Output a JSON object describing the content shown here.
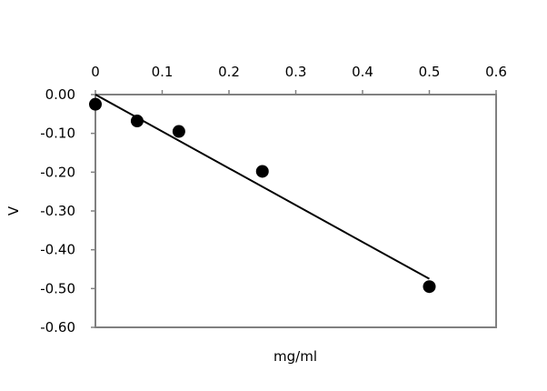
{
  "chart_data": {
    "type": "scatter",
    "title": "",
    "xlabel": "mg/ml",
    "ylabel": "V",
    "x_axis_position": "top",
    "xlim": [
      0,
      0.6
    ],
    "ylim": [
      -0.6,
      0.0
    ],
    "x_ticks": [
      0,
      0.1,
      0.2,
      0.3,
      0.4,
      0.5,
      0.6
    ],
    "x_tick_labels": [
      "0",
      "0.1",
      "0.2",
      "0.3",
      "0.4",
      "0.5",
      "0.6"
    ],
    "y_ticks": [
      0.0,
      -0.1,
      -0.2,
      -0.3,
      -0.4,
      -0.5,
      -0.6
    ],
    "y_tick_labels": [
      "0.00",
      "-0.10",
      "-0.20",
      "-0.30",
      "-0.40",
      "-0.50",
      "-0.60"
    ],
    "grid": false,
    "legend": "none",
    "series": [
      {
        "x": [
          0,
          0.0625,
          0.125,
          0.25,
          0.5
        ],
        "y": [
          -0.025,
          -0.068,
          -0.095,
          -0.198,
          -0.495
        ],
        "marker_color": "#000000"
      }
    ],
    "trendline": {
      "x": [
        0,
        0.5
      ],
      "y": [
        0.0,
        -0.475
      ],
      "color": "#000000"
    },
    "colors": {
      "plot_border": "#808080",
      "text": "#000000"
    }
  }
}
